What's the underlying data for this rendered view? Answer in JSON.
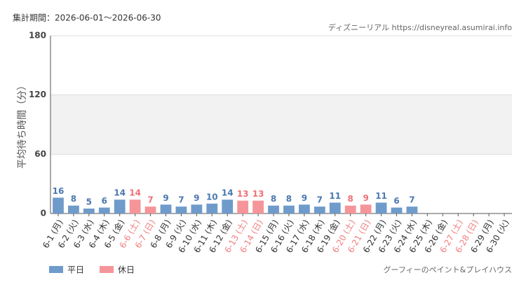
{
  "chart_data": {
    "type": "bar",
    "title": "集計期間：2026-06-01〜2026-06-30",
    "source": "ディズニーリアル https://disneyreal.asumirai.info",
    "y_label": "平均待ち時間（分）",
    "footer": "グーフィーのペイント&プレイハウス",
    "categories": [
      "6-1 (月)",
      "6-2 (火)",
      "6-3 (水)",
      "6-4 (木)",
      "6-5 (金)",
      "6-6 (土)",
      "6-7 (日)",
      "6-8 (月)",
      "6-9 (火)",
      "6-10 (水)",
      "6-11 (木)",
      "6-12 (金)",
      "6-13 (土)",
      "6-14 (日)",
      "6-15 (月)",
      "6-16 (火)",
      "6-17 (水)",
      "6-18 (木)",
      "6-19 (金)",
      "6-20 (土)",
      "6-21 (日)",
      "6-22 (月)",
      "6-23 (火)",
      "6-24 (水)",
      "6-25 (木)",
      "6-26 (金)",
      "6-27 (土)",
      "6-28 (日)",
      "6-29 (月)",
      "6-30 (火)"
    ],
    "category_label_colors": [
      "#333",
      "#333",
      "#333",
      "#333",
      "#333",
      "#f08080",
      "#f08080",
      "#333",
      "#333",
      "#333",
      "#333",
      "#333",
      "#f08080",
      "#f08080",
      "#333",
      "#333",
      "#333",
      "#333",
      "#333",
      "#f08080",
      "#f08080",
      "#333",
      "#333",
      "#333",
      "#333",
      "#333",
      "#f08080",
      "#f08080",
      "#333",
      "#333"
    ],
    "series": [
      {
        "name": "平日",
        "color": "#6f9bcb",
        "label_color": "#4a78b0",
        "values": [
          16,
          8,
          5,
          6,
          14,
          null,
          null,
          9,
          7,
          9,
          10,
          14,
          null,
          null,
          8,
          8,
          9,
          7,
          11,
          null,
          null,
          11,
          6,
          7,
          null,
          null,
          null,
          null,
          null,
          null
        ]
      },
      {
        "name": "休日",
        "color": "#f5959a",
        "label_color": "#f07078",
        "values": [
          null,
          null,
          null,
          null,
          null,
          14,
          7,
          null,
          null,
          null,
          null,
          null,
          13,
          13,
          null,
          null,
          null,
          null,
          null,
          8,
          9,
          null,
          null,
          null,
          null,
          null,
          null,
          null,
          null,
          null
        ]
      }
    ],
    "ylim": [
      0,
      180
    ],
    "yticks": [
      0,
      60,
      120,
      180
    ],
    "grid": true
  }
}
